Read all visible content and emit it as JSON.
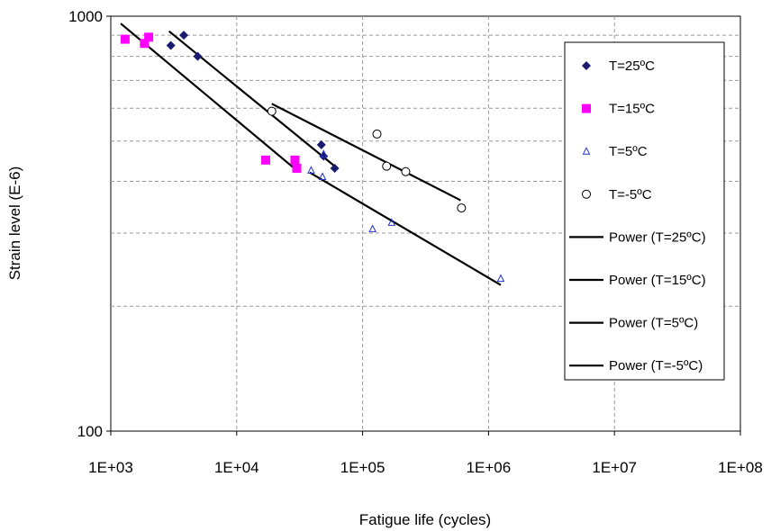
{
  "chart_data": {
    "type": "scatter",
    "xscale": "log",
    "yscale": "log",
    "xlabel": "Fatigue life (cycles)",
    "ylabel": "Strain level (E-6)",
    "xlim": [
      1000,
      100000000
    ],
    "ylim": [
      100,
      1000
    ],
    "xticks": [
      "1E+03",
      "1E+04",
      "1E+05",
      "1E+06",
      "1E+07",
      "1E+08"
    ],
    "yticks": [
      "100",
      "1000"
    ],
    "grid": true,
    "legend_position": "right",
    "series": [
      {
        "name": "T=25ºC",
        "marker": "diamond",
        "color": "#1a1a6e",
        "points": [
          [
            3000,
            850
          ],
          [
            3800,
            900
          ],
          [
            4900,
            800
          ],
          [
            47000,
            490
          ],
          [
            49000,
            460
          ],
          [
            60000,
            430
          ]
        ]
      },
      {
        "name": "T=15ºC",
        "marker": "square",
        "color": "#ff00ff",
        "points": [
          [
            1300,
            880
          ],
          [
            1850,
            860
          ],
          [
            2000,
            890
          ],
          [
            17000,
            450
          ],
          [
            29000,
            450
          ],
          [
            30000,
            430
          ]
        ]
      },
      {
        "name": "T=5ºC",
        "marker": "triangle",
        "color": "#2233cc",
        "points": [
          [
            39000,
            425
          ],
          [
            48000,
            410
          ],
          [
            49000,
            465
          ],
          [
            120000,
            307
          ],
          [
            170000,
            318
          ],
          [
            1250000,
            233
          ]
        ]
      },
      {
        "name": "T=-5ºC",
        "marker": "circle",
        "color": "#000000",
        "points": [
          [
            19000,
            590
          ],
          [
            130000,
            520
          ],
          [
            155000,
            435
          ],
          [
            220000,
            422
          ],
          [
            610000,
            345
          ]
        ]
      }
    ],
    "trendlines": [
      {
        "name": "Power (T=25ºC)",
        "from": [
          2900,
          920
        ],
        "to": [
          60000,
          435
        ]
      },
      {
        "name": "Power (T=15ºC)",
        "from": [
          1200,
          960
        ],
        "to": [
          30000,
          425
        ]
      },
      {
        "name": "Power (T=5ºC)",
        "from": [
          38000,
          420
        ],
        "to": [
          1250000,
          225
        ]
      },
      {
        "name": "Power (T=-5ºC)",
        "from": [
          19000,
          615
        ],
        "to": [
          600000,
          360
        ]
      }
    ]
  }
}
